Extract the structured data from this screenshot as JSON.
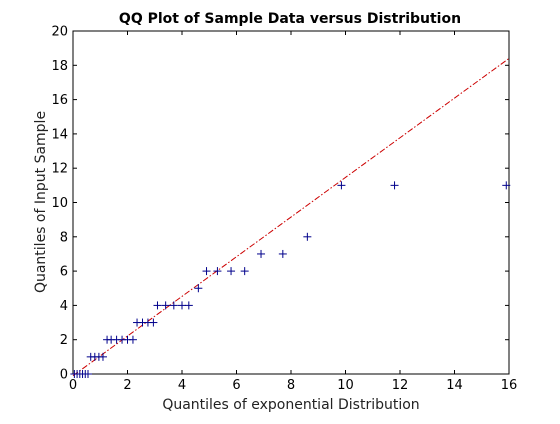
{
  "chart_data": {
    "type": "scatter",
    "title": "QQ Plot of Sample Data versus Distribution",
    "xlabel": "Quantiles of exponential Distribution",
    "ylabel": "Quantiles of Input Sample",
    "xlim": [
      0,
      16
    ],
    "ylim": [
      0,
      20
    ],
    "xticks": [
      0,
      2,
      4,
      6,
      8,
      10,
      12,
      14,
      16
    ],
    "yticks": [
      0,
      2,
      4,
      6,
      8,
      10,
      12,
      14,
      16,
      18,
      20
    ],
    "grid": false,
    "legend": "none",
    "series": [
      {
        "marker": "plus",
        "color": "#00008b",
        "points": [
          [
            0.05,
            0
          ],
          [
            0.15,
            0
          ],
          [
            0.25,
            0
          ],
          [
            0.35,
            0
          ],
          [
            0.45,
            0
          ],
          [
            0.55,
            0
          ],
          [
            0.65,
            1
          ],
          [
            0.8,
            1
          ],
          [
            0.95,
            1
          ],
          [
            1.1,
            1
          ],
          [
            1.25,
            2
          ],
          [
            1.4,
            2
          ],
          [
            1.6,
            2
          ],
          [
            1.8,
            2
          ],
          [
            2.0,
            2
          ],
          [
            2.2,
            2
          ],
          [
            2.35,
            3
          ],
          [
            2.55,
            3
          ],
          [
            2.75,
            3
          ],
          [
            2.95,
            3
          ],
          [
            3.1,
            4
          ],
          [
            3.4,
            4
          ],
          [
            3.7,
            4
          ],
          [
            4.0,
            4
          ],
          [
            4.25,
            4
          ],
          [
            4.6,
            5
          ],
          [
            4.9,
            6
          ],
          [
            5.3,
            6
          ],
          [
            5.8,
            6
          ],
          [
            6.3,
            6
          ],
          [
            6.9,
            7
          ],
          [
            7.7,
            7
          ],
          [
            8.6,
            8
          ],
          [
            9.85,
            11
          ],
          [
            11.8,
            11
          ],
          [
            15.9,
            11
          ]
        ]
      }
    ],
    "reference_line": {
      "style": "dash-dot",
      "color": "#cc0000",
      "from": [
        0,
        -0.1
      ],
      "to": [
        16,
        18.4
      ]
    }
  }
}
